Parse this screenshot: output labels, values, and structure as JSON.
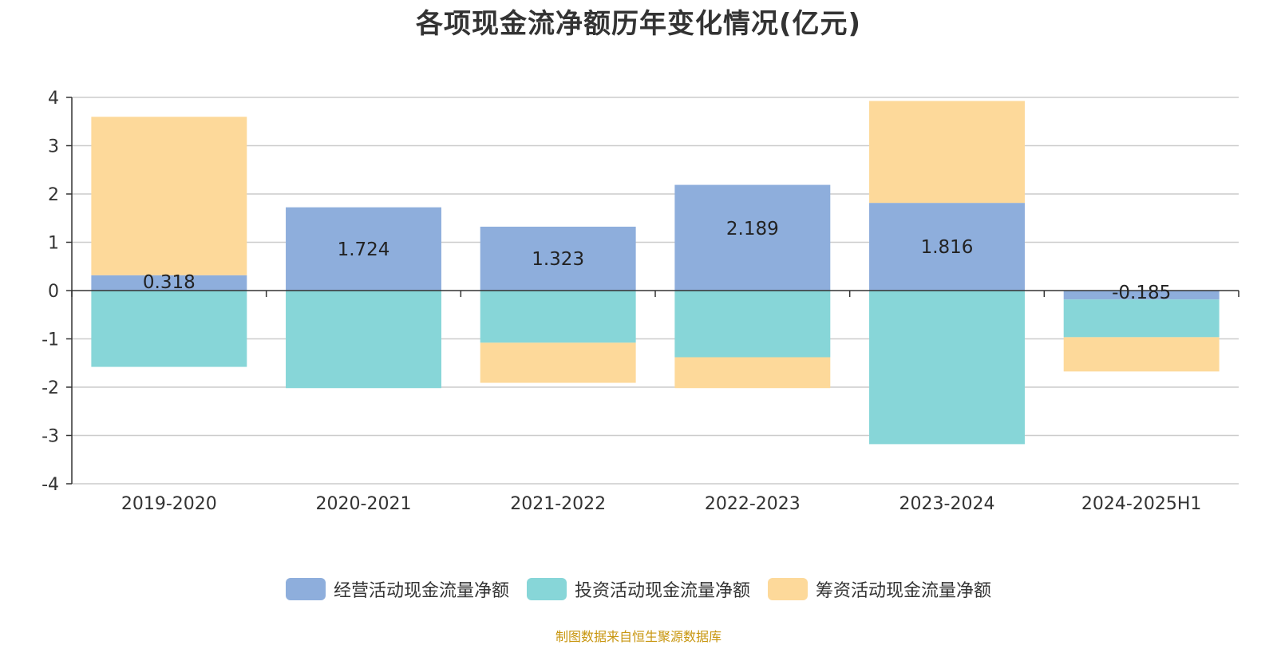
{
  "title": "各项现金流净额历年变化情况(亿元)",
  "source_note": "制图数据来自恒生聚源数据库",
  "chart_data": {
    "type": "bar",
    "stacked": true,
    "categories": [
      "2019-2020",
      "2020-2021",
      "2021-2022",
      "2022-2023",
      "2023-2024",
      "2024-2025H1"
    ],
    "ylim": [
      -4,
      4
    ],
    "yticks": [
      -4,
      -3,
      -2,
      -1,
      0,
      1,
      2,
      3,
      4
    ],
    "grid": true,
    "legend_position": "bottom",
    "series": [
      {
        "name": "经营活动现金流量净额",
        "color": "#8eaedc",
        "values": [
          0.318,
          1.724,
          1.323,
          2.189,
          1.816,
          -0.185
        ],
        "labels": [
          "0.318",
          "1.724",
          "1.323",
          "2.189",
          "1.816",
          "-0.185"
        ]
      },
      {
        "name": "投资活动现金流量净额",
        "color": "#87d6d8",
        "values": [
          -1.58,
          -2.02,
          -1.08,
          -1.38,
          -3.18,
          -0.78
        ]
      },
      {
        "name": "筹资活动现金流量净额",
        "color": "#fdd99a",
        "values": [
          3.28,
          0.0,
          -0.83,
          -0.64,
          2.11,
          -0.71
        ]
      }
    ]
  }
}
